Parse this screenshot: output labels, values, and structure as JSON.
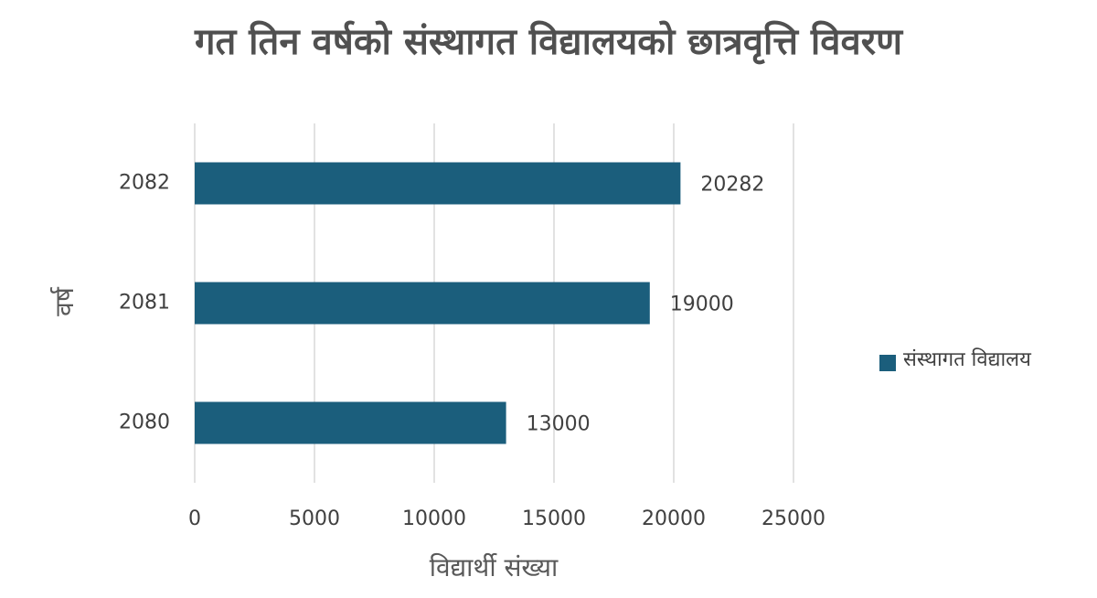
{
  "chart_data": {
    "type": "bar",
    "orientation": "horizontal",
    "title": "गत तिन वर्षको संस्थागत विद्यालयको छात्रवृत्ति विवरण",
    "x_label": "विद्यार्थी संख्या",
    "y_label": "वर्ष",
    "categories": [
      "2080",
      "2081",
      "2082"
    ],
    "series": [
      {
        "name": "संस्थागत विद्यालय",
        "color": "#1b5e7c",
        "values": [
          13000,
          19000,
          20282
        ]
      }
    ],
    "xlim": [
      0,
      25000
    ],
    "xticks": [
      0,
      5000,
      10000,
      15000,
      20000,
      25000
    ],
    "grid": true,
    "legend": "right",
    "data_labels": true
  }
}
